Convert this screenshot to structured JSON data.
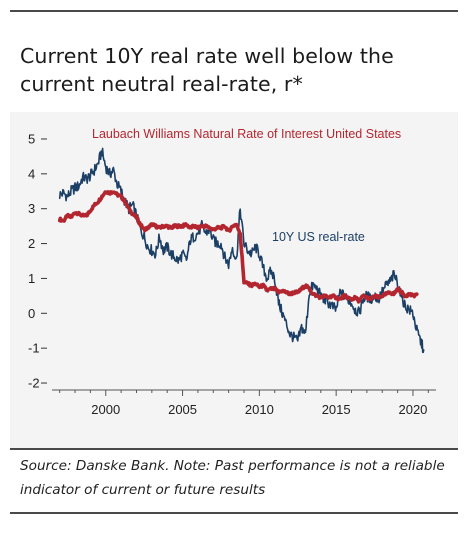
{
  "title": "Current 10Y real rate well below the current neutral real-rate, r*",
  "source": "Source: Danske Bank. Note: Past performance is not a reliable indicator of current or future results",
  "colors": {
    "background": "#f4f4f4",
    "real_rate": "#1c3f66",
    "neutral_rate": "#b4262f",
    "rules": "#4a4a4a"
  },
  "chart_data": {
    "type": "line",
    "title": "Current 10Y real rate well below the current neutral real-rate, r*",
    "xlabel": "",
    "ylabel": "",
    "xlim": [
      1996.5,
      2021.5
    ],
    "ylim": [
      -2.2,
      5.2
    ],
    "x_ticks": [
      2000,
      2005,
      2010,
      2015,
      2020
    ],
    "x_tick_labels": [
      "2000",
      "2005",
      "2010",
      "2015",
      "2020"
    ],
    "y_ticks": [
      5,
      4,
      3,
      2,
      1,
      0,
      -1,
      -2
    ],
    "y_tick_labels": [
      "5",
      "4",
      "3",
      "2",
      "1",
      "0",
      "-1",
      "-2"
    ],
    "grid": false,
    "series": [
      {
        "name": "Laubach Williams Natural Rate of Interest United States",
        "color": "#b4262f",
        "x": [
          1997.0,
          1997.25,
          1997.5,
          1997.75,
          1998.0,
          1998.25,
          1998.5,
          1998.75,
          1999.0,
          1999.25,
          1999.5,
          1999.75,
          2000.0,
          2000.25,
          2000.5,
          2000.75,
          2001.0,
          2001.25,
          2001.5,
          2001.75,
          2002.0,
          2002.25,
          2002.5,
          2002.75,
          2003.0,
          2003.25,
          2003.5,
          2003.75,
          2004.0,
          2004.25,
          2004.5,
          2004.75,
          2005.0,
          2005.25,
          2005.5,
          2005.75,
          2006.0,
          2006.25,
          2006.5,
          2006.75,
          2007.0,
          2007.25,
          2007.5,
          2007.75,
          2008.0,
          2008.25,
          2008.5,
          2008.75,
          2009.0,
          2009.25,
          2009.5,
          2009.75,
          2010.0,
          2010.25,
          2010.5,
          2010.75,
          2011.0,
          2011.25,
          2011.5,
          2011.75,
          2012.0,
          2012.25,
          2012.5,
          2012.75,
          2013.0,
          2013.25,
          2013.5,
          2013.75,
          2014.0,
          2014.25,
          2014.5,
          2014.75,
          2015.0,
          2015.25,
          2015.5,
          2015.75,
          2016.0,
          2016.25,
          2016.5,
          2016.75,
          2017.0,
          2017.25,
          2017.5,
          2017.75,
          2018.0,
          2018.25,
          2018.5,
          2018.75,
          2019.0,
          2019.25,
          2019.5,
          2019.75,
          2020.0,
          2020.25
        ],
        "values": [
          2.7,
          2.65,
          2.8,
          2.75,
          2.9,
          2.85,
          2.8,
          2.8,
          2.95,
          3.1,
          3.2,
          3.35,
          3.5,
          3.45,
          3.5,
          3.4,
          3.35,
          3.2,
          3.0,
          2.85,
          2.75,
          2.55,
          2.4,
          2.45,
          2.55,
          2.5,
          2.45,
          2.5,
          2.5,
          2.45,
          2.5,
          2.5,
          2.5,
          2.55,
          2.45,
          2.5,
          2.45,
          2.5,
          2.5,
          2.45,
          2.4,
          2.45,
          2.45,
          2.5,
          2.35,
          2.5,
          2.55,
          2.3,
          0.9,
          0.85,
          0.8,
          0.85,
          0.75,
          0.8,
          0.65,
          0.7,
          0.7,
          0.6,
          0.65,
          0.6,
          0.55,
          0.6,
          0.6,
          0.7,
          0.8,
          0.7,
          0.55,
          0.5,
          0.45,
          0.5,
          0.45,
          0.5,
          0.45,
          0.4,
          0.5,
          0.45,
          0.4,
          0.45,
          0.35,
          0.5,
          0.45,
          0.4,
          0.5,
          0.45,
          0.5,
          0.55,
          0.6,
          0.55,
          0.7,
          0.6,
          0.5,
          0.55,
          0.5,
          0.55
        ]
      },
      {
        "name": "10Y US real-rate",
        "color": "#1c3f66",
        "x": [
          1997.0,
          1997.25,
          1997.5,
          1997.75,
          1998.0,
          1998.25,
          1998.5,
          1998.75,
          1999.0,
          1999.25,
          1999.5,
          1999.75,
          2000.0,
          2000.25,
          2000.5,
          2000.75,
          2001.0,
          2001.25,
          2001.5,
          2001.75,
          2002.0,
          2002.25,
          2002.5,
          2002.75,
          2003.0,
          2003.25,
          2003.5,
          2003.75,
          2004.0,
          2004.25,
          2004.5,
          2004.75,
          2005.0,
          2005.25,
          2005.5,
          2005.75,
          2006.0,
          2006.25,
          2006.5,
          2006.75,
          2007.0,
          2007.25,
          2007.5,
          2007.75,
          2008.0,
          2008.25,
          2008.5,
          2008.75,
          2009.0,
          2009.25,
          2009.5,
          2009.75,
          2010.0,
          2010.25,
          2010.5,
          2010.75,
          2011.0,
          2011.25,
          2011.5,
          2011.75,
          2012.0,
          2012.25,
          2012.5,
          2012.75,
          2013.0,
          2013.25,
          2013.5,
          2013.75,
          2014.0,
          2014.25,
          2014.5,
          2014.75,
          2015.0,
          2015.25,
          2015.5,
          2015.75,
          2016.0,
          2016.25,
          2016.5,
          2016.75,
          2017.0,
          2017.25,
          2017.5,
          2017.75,
          2018.0,
          2018.25,
          2018.5,
          2018.75,
          2019.0,
          2019.25,
          2019.5,
          2019.75,
          2020.0,
          2020.25,
          2020.5,
          2020.7
        ],
        "values": [
          3.4,
          3.45,
          3.35,
          3.5,
          3.6,
          3.65,
          3.9,
          3.85,
          3.95,
          4.1,
          4.3,
          4.65,
          4.2,
          4.0,
          4.1,
          3.7,
          3.5,
          3.2,
          3.0,
          3.1,
          2.8,
          2.4,
          2.2,
          1.9,
          1.8,
          1.7,
          2.2,
          1.8,
          1.9,
          1.7,
          1.6,
          1.5,
          1.7,
          1.5,
          2.1,
          2.2,
          2.3,
          2.5,
          2.3,
          2.4,
          2.1,
          2.0,
          2.0,
          1.6,
          1.4,
          1.9,
          1.5,
          3.0,
          2.0,
          1.8,
          1.7,
          1.9,
          1.7,
          1.3,
          1.0,
          1.2,
          1.0,
          0.3,
          0.0,
          -0.3,
          -0.6,
          -0.7,
          -0.8,
          -0.4,
          -0.6,
          0.6,
          0.8,
          0.7,
          0.5,
          0.4,
          0.3,
          0.2,
          0.1,
          0.6,
          0.5,
          0.4,
          0.3,
          0.1,
          0.0,
          0.4,
          0.5,
          0.4,
          0.5,
          0.4,
          0.6,
          0.8,
          0.9,
          1.1,
          0.9,
          0.5,
          0.2,
          0.1,
          0.0,
          -0.5,
          -0.8,
          -1.05
        ]
      }
    ],
    "annotations": [
      {
        "text": "Laubach Williams Natural Rate of Interest United States",
        "series": 0
      },
      {
        "text": "10Y US real-rate",
        "series": 1
      }
    ]
  }
}
